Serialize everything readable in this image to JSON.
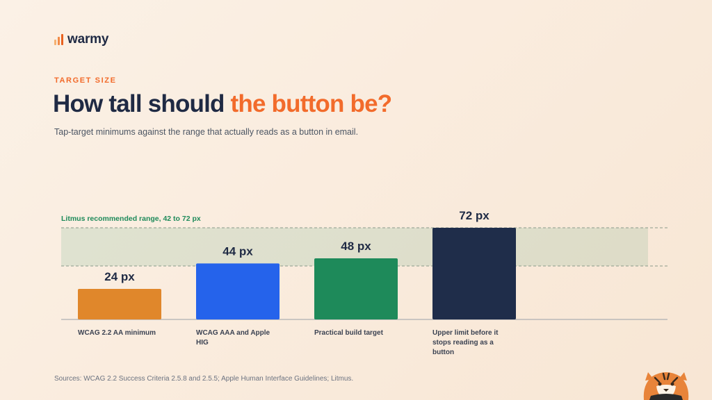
{
  "brand": {
    "name": "warmy",
    "accent": "#f26b2b"
  },
  "header": {
    "eyebrow": "TARGET SIZE",
    "title_part1": "How tall should ",
    "title_highlight": "the button be?",
    "subtitle": "Tap-target minimums against the range that actually reads as a button in email."
  },
  "footer": {
    "sources": "Sources: WCAG 2.2 Success Criteria 2.5.8 and 2.5.5; Apple Human Interface Guidelines; Litmus."
  },
  "chart_data": {
    "type": "bar",
    "categories": [
      "WCAG 2.2 AA minimum",
      "WCAG AAA and Apple HIG",
      "Practical build target",
      "Upper limit before it stops reading as a button"
    ],
    "category_lines": [
      [
        "WCAG 2.2 AA minimum"
      ],
      [
        "WCAG AAA and Apple",
        "HIG"
      ],
      [
        "Practical build target"
      ],
      [
        "Upper limit before it",
        "stops reading as a",
        "button"
      ]
    ],
    "values": [
      24,
      44,
      48,
      72
    ],
    "value_labels": [
      "24 px",
      "44 px",
      "48 px",
      "72 px"
    ],
    "colors": [
      "#e0872b",
      "#2563eb",
      "#1e8a5a",
      "#1f2d4a"
    ],
    "band": {
      "label": "Litmus recommended range, 42 to 72 px",
      "min": 42,
      "max": 72,
      "color": "#1e8a5a"
    },
    "ylim": [
      0,
      72
    ]
  }
}
